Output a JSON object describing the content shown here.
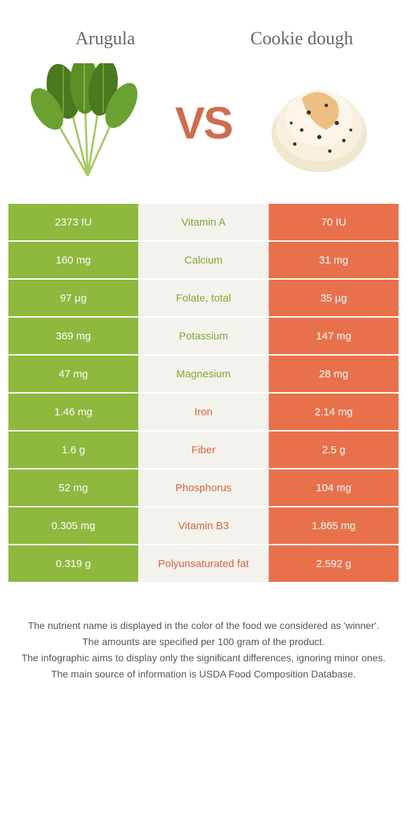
{
  "colors": {
    "left": "#8fb83f",
    "right": "#e8714c",
    "mid_bg": "#f3f2ed",
    "vs": "#cc6e4f",
    "text": "#555555",
    "mid_green": "#7fa830",
    "mid_orange": "#d86440"
  },
  "header": {
    "left_title": "Arugula",
    "right_title": "Cookie dough",
    "vs": "VS"
  },
  "rows": [
    {
      "left": "2373 IU",
      "label": "Vitamin A",
      "right": "70 IU",
      "winner": "left"
    },
    {
      "left": "160 mg",
      "label": "Calcium",
      "right": "31 mg",
      "winner": "left"
    },
    {
      "left": "97 µg",
      "label": "Folate, total",
      "right": "35 µg",
      "winner": "left"
    },
    {
      "left": "369 mg",
      "label": "Potassium",
      "right": "147 mg",
      "winner": "left"
    },
    {
      "left": "47 mg",
      "label": "Magnesium",
      "right": "28 mg",
      "winner": "left"
    },
    {
      "left": "1.46 mg",
      "label": "Iron",
      "right": "2.14 mg",
      "winner": "right"
    },
    {
      "left": "1.6 g",
      "label": "Fiber",
      "right": "2.5 g",
      "winner": "right"
    },
    {
      "left": "52 mg",
      "label": "Phosphorus",
      "right": "104 mg",
      "winner": "right"
    },
    {
      "left": "0.305 mg",
      "label": "Vitamin B3",
      "right": "1.865 mg",
      "winner": "right"
    },
    {
      "left": "0.319 g",
      "label": "Polyunsaturated fat",
      "right": "2.592 g",
      "winner": "right"
    }
  ],
  "footnotes": [
    "The nutrient name is displayed in the color of the food we considered as 'winner'.",
    "The amounts are specified per 100 gram of the product.",
    "The infographic aims to display only the significant differences, ignoring minor ones.",
    "The main source of information is USDA Food Composition Database."
  ]
}
